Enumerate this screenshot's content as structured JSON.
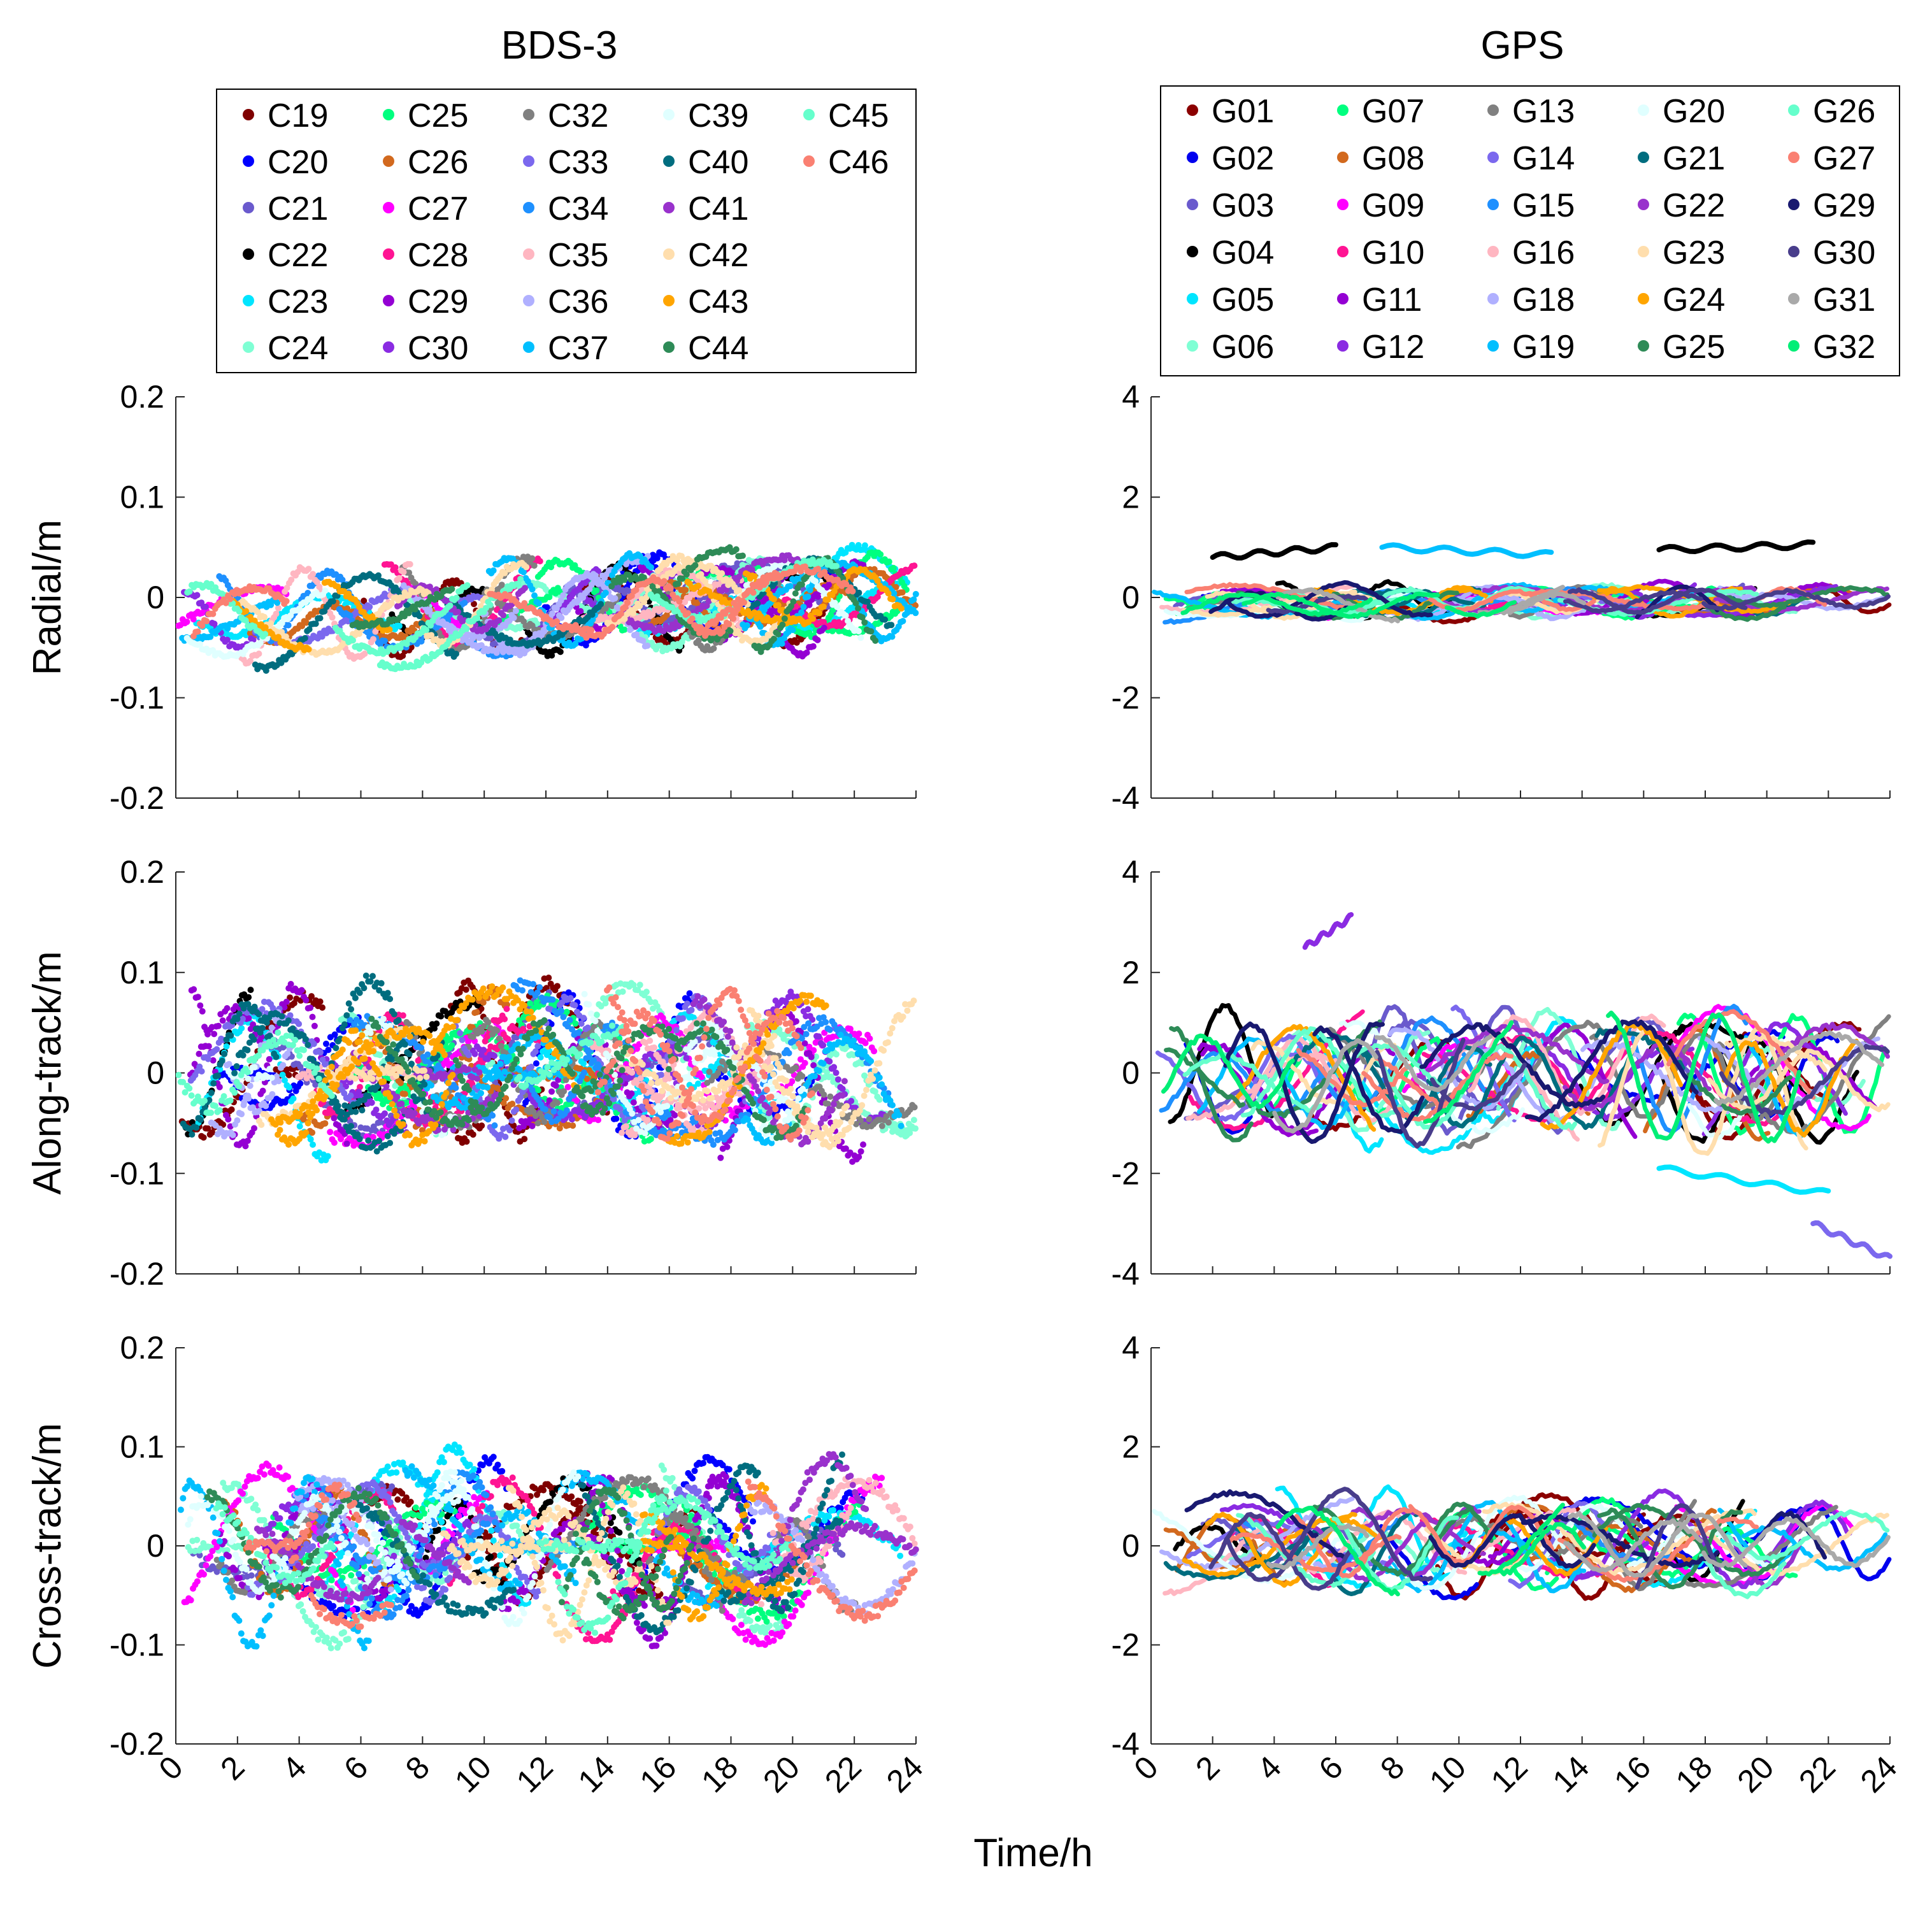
{
  "chart_data": {
    "type": "scatter",
    "xlabel": "Time/h",
    "x_ticks": [
      "0",
      "2",
      "4",
      "6",
      "8",
      "10",
      "12",
      "14",
      "16",
      "18",
      "20",
      "22",
      "24"
    ],
    "xlim": [
      0,
      24
    ],
    "columns": [
      {
        "title": "BDS-3",
        "marker": "dots",
        "legend": [
          "C19",
          "C20",
          "C21",
          "C22",
          "C23",
          "C24",
          "C25",
          "C26",
          "C27",
          "C28",
          "C29",
          "C30",
          "C32",
          "C33",
          "C34",
          "C35",
          "C36",
          "C37",
          "C39",
          "C40",
          "C41",
          "C42",
          "C43",
          "C44",
          "C45",
          "C46"
        ],
        "colors": [
          "#7f0000",
          "#0000ff",
          "#6a5acd",
          "#000000",
          "#00e5ff",
          "#7fffd4",
          "#00ff7f",
          "#d2691e",
          "#ff00ff",
          "#ff1493",
          "#9400d3",
          "#8a2be2",
          "#808080",
          "#7b68ee",
          "#1e90ff",
          "#ffb6c1",
          "#b0b0ff",
          "#00bfff",
          "#e0ffff",
          "#006d7f",
          "#9932cc",
          "#ffdead",
          "#ffa500",
          "#2e8b57",
          "#66ffcc",
          "#fa8072"
        ],
        "panels": [
          {
            "name": "radial",
            "ylabel": "Radial/m",
            "ylim": [
              -0.2,
              0.2
            ],
            "y_ticks": [
              "-0.2",
              "-0.1",
              "0",
              "0.1",
              "0.2"
            ],
            "amplitude": 0.035,
            "offset": -0.015,
            "trend": 0.025,
            "noise": 0.006
          },
          {
            "name": "along",
            "ylabel": "Along-track/m",
            "ylim": [
              -0.2,
              0.2
            ],
            "y_ticks": [
              "-0.2",
              "-0.1",
              "0",
              "0.1",
              "0.2"
            ],
            "amplitude": 0.06,
            "offset": 0.0,
            "trend": 0.0,
            "noise": 0.012
          },
          {
            "name": "cross",
            "ylabel": "Cross-track/m",
            "ylim": [
              -0.2,
              0.2
            ],
            "y_ticks": [
              "-0.2",
              "-0.1",
              "0",
              "0.1",
              "0.2"
            ],
            "amplitude": 0.065,
            "offset": 0.0,
            "trend": 0.0,
            "noise": 0.012
          }
        ]
      },
      {
        "title": "GPS",
        "marker": "lines",
        "legend": [
          "G01",
          "G02",
          "G03",
          "G04",
          "G05",
          "G06",
          "G07",
          "G08",
          "G09",
          "G10",
          "G11",
          "G12",
          "G13",
          "G14",
          "G15",
          "G16",
          "G18",
          "G19",
          "G20",
          "G21",
          "G22",
          "G23",
          "G24",
          "G25",
          "G26",
          "G27",
          "G29",
          "G30",
          "G31",
          "G32"
        ],
        "colors": [
          "#8b0000",
          "#0000ee",
          "#6a5acd",
          "#000000",
          "#00e5ff",
          "#7fffd4",
          "#00ff7f",
          "#d2691e",
          "#ff00ff",
          "#ff1493",
          "#9400d3",
          "#8a2be2",
          "#808080",
          "#7b68ee",
          "#1e90ff",
          "#ffb6c1",
          "#b0b0ff",
          "#00bfff",
          "#e0ffff",
          "#006d7f",
          "#9932cc",
          "#ffdead",
          "#ffa500",
          "#2e8b57",
          "#66ffcc",
          "#fa8072",
          "#191970",
          "#483d8b",
          "#a9a9a9",
          "#00ee76"
        ],
        "panels": [
          {
            "name": "radial",
            "ylabel": "",
            "ylim": [
              -4,
              4
            ],
            "y_ticks": [
              "-4",
              "-2",
              "0",
              "2",
              "4"
            ],
            "amplitude": 0.25,
            "offset": -0.1,
            "trend": 0.1,
            "noise": 0.05
          },
          {
            "name": "along",
            "ylabel": "",
            "ylim": [
              -4,
              4
            ],
            "y_ticks": [
              "-4",
              "-2",
              "0",
              "2",
              "4"
            ],
            "amplitude": 1.0,
            "offset": -0.1,
            "trend": 0.0,
            "noise": 0.1
          },
          {
            "name": "cross",
            "ylabel": "",
            "ylim": [
              -4,
              4
            ],
            "y_ticks": [
              "-4",
              "-2",
              "0",
              "2",
              "4"
            ],
            "amplitude": 0.7,
            "offset": 0.05,
            "trend": 0.0,
            "noise": 0.08
          }
        ]
      }
    ],
    "highlight_series": {
      "G04_radial": {
        "segments": [
          {
            "x": [
              2,
              6
            ],
            "y": [
              0.8,
              1.0
            ]
          },
          {
            "x": [
              16.5,
              21.5
            ],
            "y": [
              0.95,
              1.05
            ]
          }
        ]
      },
      "G19_radial": {
        "segments": [
          {
            "x": [
              7.5,
              13
            ],
            "y": [
              1.0,
              0.85
            ]
          }
        ]
      },
      "G05_along": {
        "segments": [
          {
            "x": [
              16.5,
              22
            ],
            "y": [
              -1.9,
              -2.4
            ]
          }
        ]
      },
      "G14_along": {
        "segments": [
          {
            "x": [
              21.5,
              24
            ],
            "y": [
              -3.0,
              -3.7
            ]
          }
        ]
      },
      "G12_along": {
        "segments": [
          {
            "x": [
              5,
              6.5
            ],
            "y": [
              2.5,
              3.1
            ]
          }
        ]
      }
    }
  }
}
